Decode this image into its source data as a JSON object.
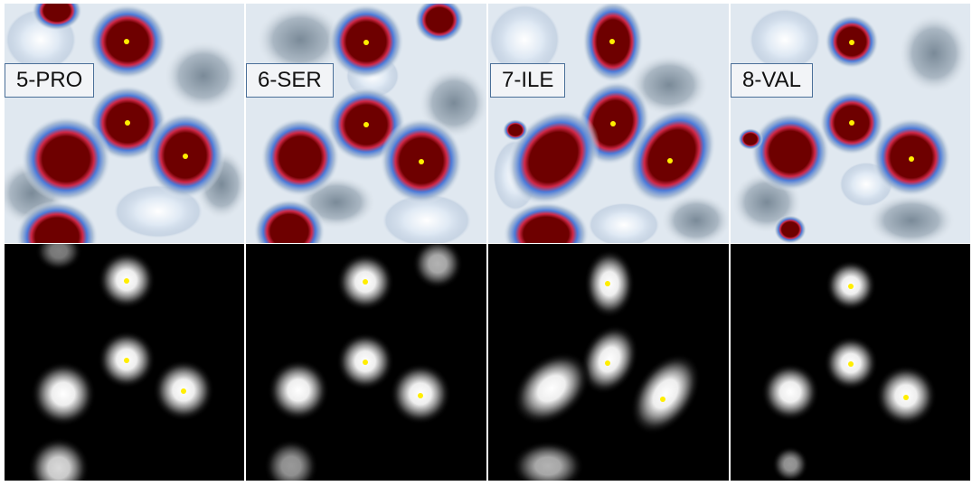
{
  "columns": [
    {
      "label": "5-PRO"
    },
    {
      "label": "6-SER"
    },
    {
      "label": "7-ILE"
    },
    {
      "label": "8-VAL"
    }
  ],
  "colors": {
    "density_background": "#e8eef4",
    "density_low": "#9fb4cf",
    "density_mid": "#4a79d8",
    "density_edge": "#e03050",
    "density_core": "#6e0000",
    "marker": "#ffee00",
    "sim_background": "#000000",
    "label_border": "#4a6f98"
  }
}
